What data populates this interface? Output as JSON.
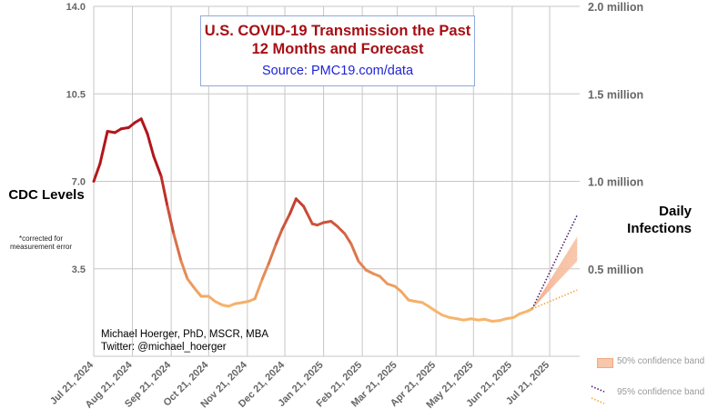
{
  "chart_data": {
    "type": "line",
    "title": "U.S. COVID-19 Transmission the Past 12 Months and Forecast",
    "subtitle": "Source: PMC19.com/data",
    "ylabel_left": "CDC Levels",
    "ylabel_left_note": "*corrected for measurement error",
    "ylabel_right": "Daily Infections",
    "left_ticks": [
      "14.0",
      "10.5",
      "7.0",
      "3.5"
    ],
    "right_ticks": [
      "2.0 million",
      "1.5 million",
      "1.0 million",
      "0.5 million"
    ],
    "ylim": [
      0,
      14
    ],
    "xlim_days": [
      0,
      389
    ],
    "x_ticks": [
      {
        "label": "Jul 21, 2024",
        "day": 0
      },
      {
        "label": "Aug 21, 2024",
        "day": 31
      },
      {
        "label": "Sep 21, 2024",
        "day": 62
      },
      {
        "label": "Oct 21, 2024",
        "day": 92
      },
      {
        "label": "Nov 21, 2024",
        "day": 123
      },
      {
        "label": "Dec 21, 2024",
        "day": 153
      },
      {
        "label": "Jan 21, 2025",
        "day": 184
      },
      {
        "label": "Feb 21, 2025",
        "day": 215
      },
      {
        "label": "Mar 21, 2025",
        "day": 243
      },
      {
        "label": "Apr 21, 2025",
        "day": 274
      },
      {
        "label": "May 21, 2025",
        "day": 304
      },
      {
        "label": "Jun 21, 2025",
        "day": 335
      },
      {
        "label": "Jul 21, 2025",
        "day": 365
      }
    ],
    "series": [
      {
        "name": "CDC Levels",
        "x_days": [
          0,
          5,
          11,
          17,
          22,
          28,
          33,
          38,
          43,
          48,
          54,
          59,
          64,
          70,
          75,
          81,
          86,
          92,
          97,
          103,
          108,
          113,
          119,
          124,
          129,
          135,
          140,
          146,
          151,
          157,
          162,
          168,
          171,
          175,
          179,
          184,
          190,
          195,
          201,
          206,
          212,
          218,
          224,
          229,
          235,
          241,
          246,
          252,
          257,
          263,
          268,
          274,
          279,
          285,
          291,
          296,
          302,
          308,
          313,
          319,
          325,
          330,
          336,
          341,
          347,
          351
        ],
        "values": [
          7.0,
          7.7,
          9.0,
          8.95,
          9.1,
          9.15,
          9.35,
          9.5,
          8.9,
          8.0,
          7.2,
          6.0,
          4.9,
          3.8,
          3.1,
          2.7,
          2.4,
          2.4,
          2.2,
          2.05,
          2.0,
          2.1,
          2.15,
          2.2,
          2.3,
          3.1,
          3.7,
          4.5,
          5.1,
          5.7,
          6.3,
          6.0,
          5.7,
          5.3,
          5.25,
          5.35,
          5.4,
          5.2,
          4.9,
          4.5,
          3.8,
          3.45,
          3.3,
          3.2,
          2.9,
          2.8,
          2.6,
          2.25,
          2.2,
          2.15,
          2.0,
          1.8,
          1.65,
          1.55,
          1.5,
          1.45,
          1.5,
          1.45,
          1.48,
          1.4,
          1.43,
          1.5,
          1.55,
          1.7,
          1.8,
          1.9
        ]
      }
    ],
    "forecast": {
      "start_day": 351,
      "end_day": 387,
      "start_value": 1.9,
      "upper_95": 5.65,
      "upper_50": 4.8,
      "median": 4.3,
      "lower_50": 3.8,
      "lower_95": 2.65
    },
    "legend": [
      "50% confidence band",
      "95% confidence band"
    ],
    "colors": {
      "high": "#b2151b",
      "low": "#f6b56c",
      "band50": "#f8c6a8",
      "upper95": "#4b1f6b",
      "lower95": "#f2a73a",
      "grid": "#c7c7c7"
    },
    "credit_line1": "Michael Hoerger, PhD, MSCR, MBA",
    "credit_line2": "Twitter: @michael_hoerger"
  }
}
